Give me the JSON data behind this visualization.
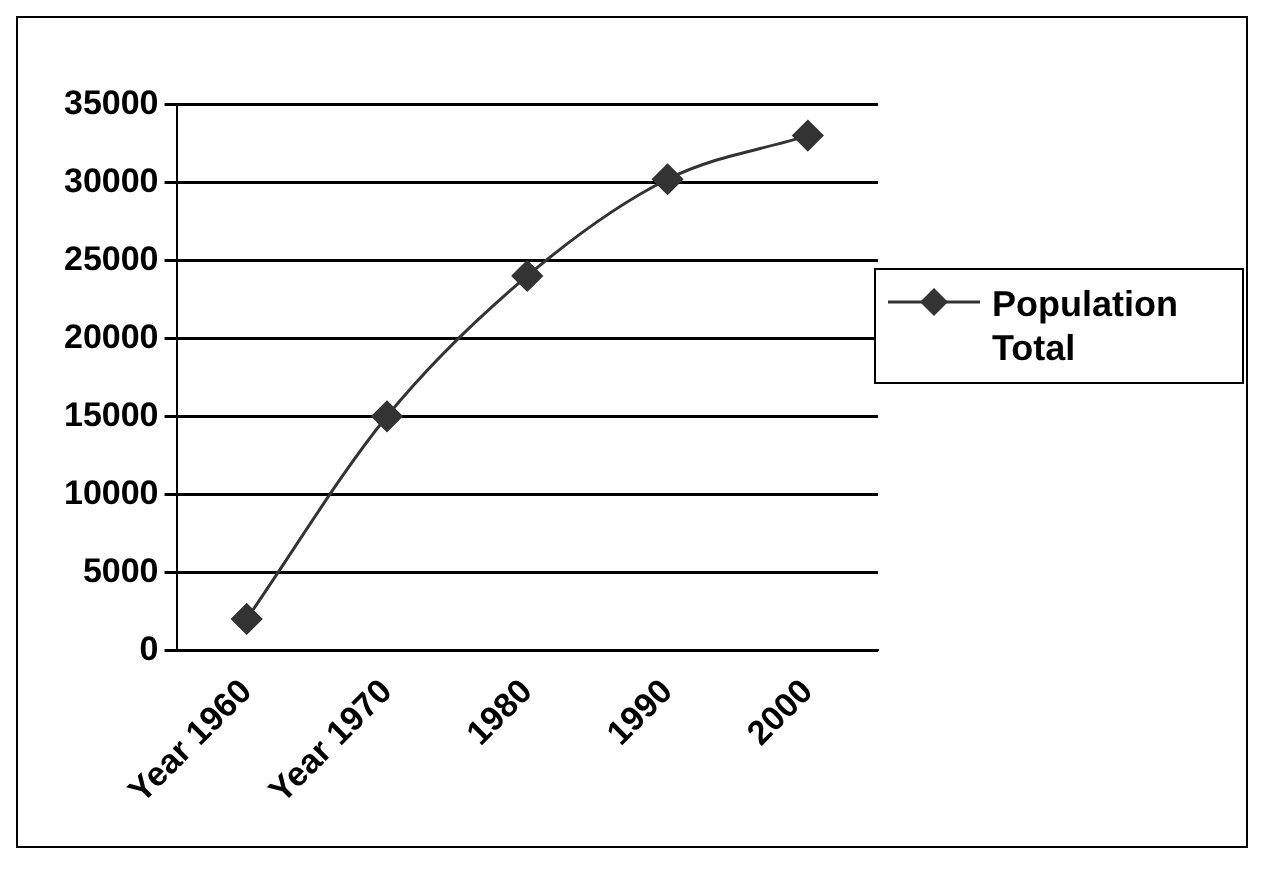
{
  "chart_data": {
    "type": "line",
    "categories": [
      "Year 1960",
      "Year 1970",
      "1980",
      "1990",
      "2000"
    ],
    "series": [
      {
        "name": "Population Total",
        "color": "#333333",
        "values": [
          2000,
          15000,
          24000,
          30200,
          33000
        ]
      }
    ],
    "ylim": [
      0,
      35000
    ],
    "yticks": [
      0,
      5000,
      10000,
      15000,
      20000,
      25000,
      30000,
      35000
    ],
    "grid": "y",
    "legend": "right",
    "marker": "diamond",
    "line_style": "solid"
  }
}
